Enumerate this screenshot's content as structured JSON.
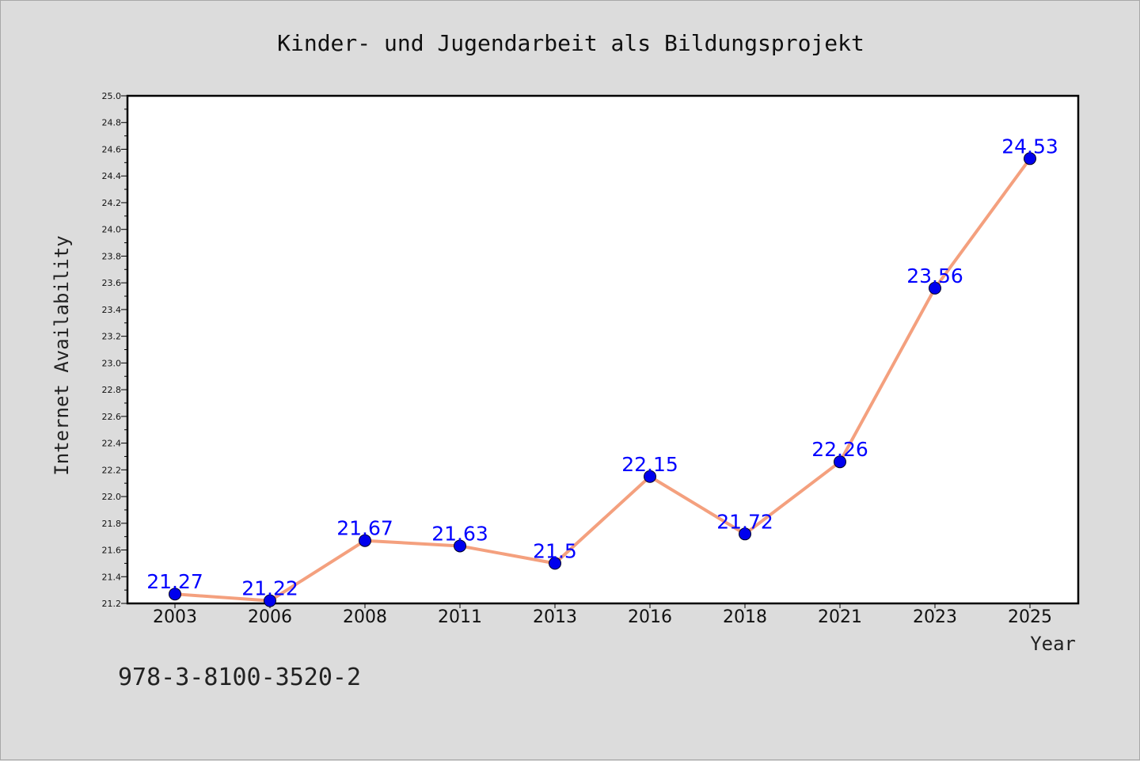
{
  "chart_data": {
    "type": "line",
    "title": "Kinder- und Jugendarbeit als Bildungsprojekt",
    "xlabel": "Year",
    "ylabel": "Internet Availability",
    "categories": [
      "2003",
      "2006",
      "2008",
      "2011",
      "2013",
      "2016",
      "2018",
      "2021",
      "2023",
      "2025"
    ],
    "series": [
      {
        "values": [
          21.27,
          21.22,
          21.67,
          21.63,
          21.5,
          22.15,
          21.72,
          22.26,
          23.56,
          24.53
        ],
        "labels": [
          "21.27",
          "21.22",
          "21.67",
          "21.63",
          "21.5",
          "22.15",
          "21.72",
          "22.26",
          "23.56",
          "24.53"
        ],
        "line_color": "#f4a07e",
        "marker_color": "#0000ee"
      }
    ],
    "ylim": [
      21.2,
      25.0
    ],
    "yticks": [
      "21.2",
      "21.4",
      "21.6",
      "21.8",
      "22.0",
      "22.2",
      "22.4",
      "22.6",
      "22.8",
      "23.0",
      "23.2",
      "23.4",
      "23.6",
      "23.8",
      "24.0",
      "24.2",
      "24.4",
      "24.6",
      "24.8",
      "25.0"
    ],
    "grid": false,
    "legend": "none"
  },
  "footer": {
    "isbn": "978-3-8100-3520-2"
  }
}
